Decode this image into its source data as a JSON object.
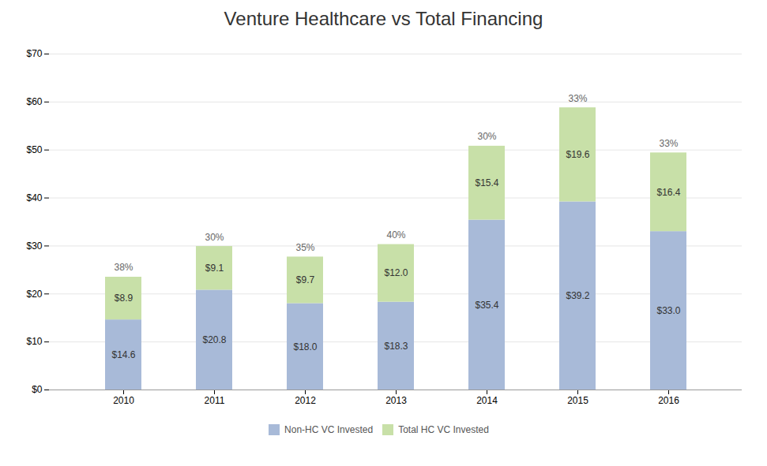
{
  "chart_data": {
    "type": "bar",
    "stacked": true,
    "title": "Venture Healthcare vs Total Financing",
    "categories": [
      "2010",
      "2011",
      "2012",
      "2013",
      "2014",
      "2015",
      "2016"
    ],
    "series": [
      {
        "name": "Non-HC VC Invested",
        "color": "#A8BAD8",
        "values": [
          14.6,
          20.8,
          18.0,
          18.3,
          35.4,
          39.2,
          33.0
        ],
        "value_labels": [
          "$14.6",
          "$20.8",
          "$18.0",
          "$18.3",
          "$35.4",
          "$39.2",
          "$33.0"
        ]
      },
      {
        "name": "Total HC VC Invested",
        "color": "#C8E0A8",
        "values": [
          8.9,
          9.1,
          9.7,
          12.0,
          15.4,
          19.6,
          16.4
        ],
        "value_labels": [
          "$8.9",
          "$9.1",
          "$9.7",
          "$12.0",
          "$15.4",
          "$19.6",
          "$16.4"
        ]
      }
    ],
    "annotations": [
      {
        "x": "2010",
        "text": "38%"
      },
      {
        "x": "2011",
        "text": "30%"
      },
      {
        "x": "2012",
        "text": "35%"
      },
      {
        "x": "2013",
        "text": "40%"
      },
      {
        "x": "2014",
        "text": "30%"
      },
      {
        "x": "2015",
        "text": "33%"
      },
      {
        "x": "2016",
        "text": "33%"
      }
    ],
    "ylim": [
      0,
      70
    ],
    "yticks": [
      {
        "value": 0,
        "label": "$0"
      },
      {
        "value": 10,
        "label": "$10"
      },
      {
        "value": 20,
        "label": "$20"
      },
      {
        "value": 30,
        "label": "$30"
      },
      {
        "value": 40,
        "label": "$40"
      },
      {
        "value": 50,
        "label": "$50"
      },
      {
        "value": 60,
        "label": "$60"
      },
      {
        "value": 70,
        "label": "$70"
      }
    ],
    "grid": true,
    "data_labels": true,
    "legend": "bottom"
  }
}
